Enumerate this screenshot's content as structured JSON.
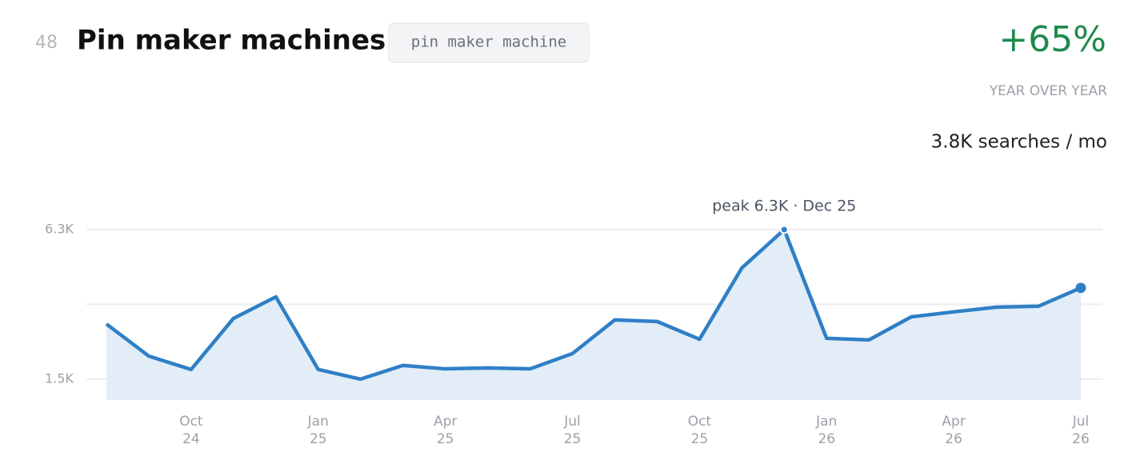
{
  "chart_data": {
    "type": "area-line",
    "rank": "48",
    "title": "Pin maker machines",
    "tag": "pin maker machine",
    "change": "+65%",
    "change_label": "YEAR OVER YEAR",
    "volume": "3.8K searches / mo",
    "annotation": "peak 6.3K · Dec 25",
    "peak_index": 16,
    "color": "#2f7fc6",
    "area_color": "#e2edf8",
    "change_color": "#1e8a4c",
    "categories": [
      null,
      null,
      {
        "month": "Oct",
        "year": "24"
      },
      null,
      null,
      {
        "month": "Jan",
        "year": "25"
      },
      null,
      null,
      {
        "month": "Apr",
        "year": "25"
      },
      null,
      null,
      {
        "month": "Jul",
        "year": "25"
      },
      null,
      null,
      {
        "month": "Oct",
        "year": "25"
      },
      null,
      null,
      {
        "month": "Jan",
        "year": "26"
      },
      null,
      null,
      {
        "month": "Apr",
        "year": "26"
      },
      null,
      null,
      {
        "month": "Jul",
        "year": "26"
      }
    ],
    "values": [
      3.27,
      2.24,
      1.81,
      3.45,
      4.14,
      1.81,
      1.5,
      1.94,
      1.83,
      1.86,
      1.83,
      2.32,
      3.4,
      3.35,
      2.78,
      5.07,
      6.3,
      2.81,
      2.76,
      3.5,
      3.66,
      3.81,
      3.84,
      4.43
    ],
    "ylim": [
      0.83,
      6.3
    ],
    "yticks": [
      {
        "value": 1.5,
        "label": "1.5K"
      },
      {
        "value": 6.3,
        "label": "6.3K"
      }
    ],
    "grid_lines": [
      1.5,
      3.9,
      6.3
    ]
  }
}
